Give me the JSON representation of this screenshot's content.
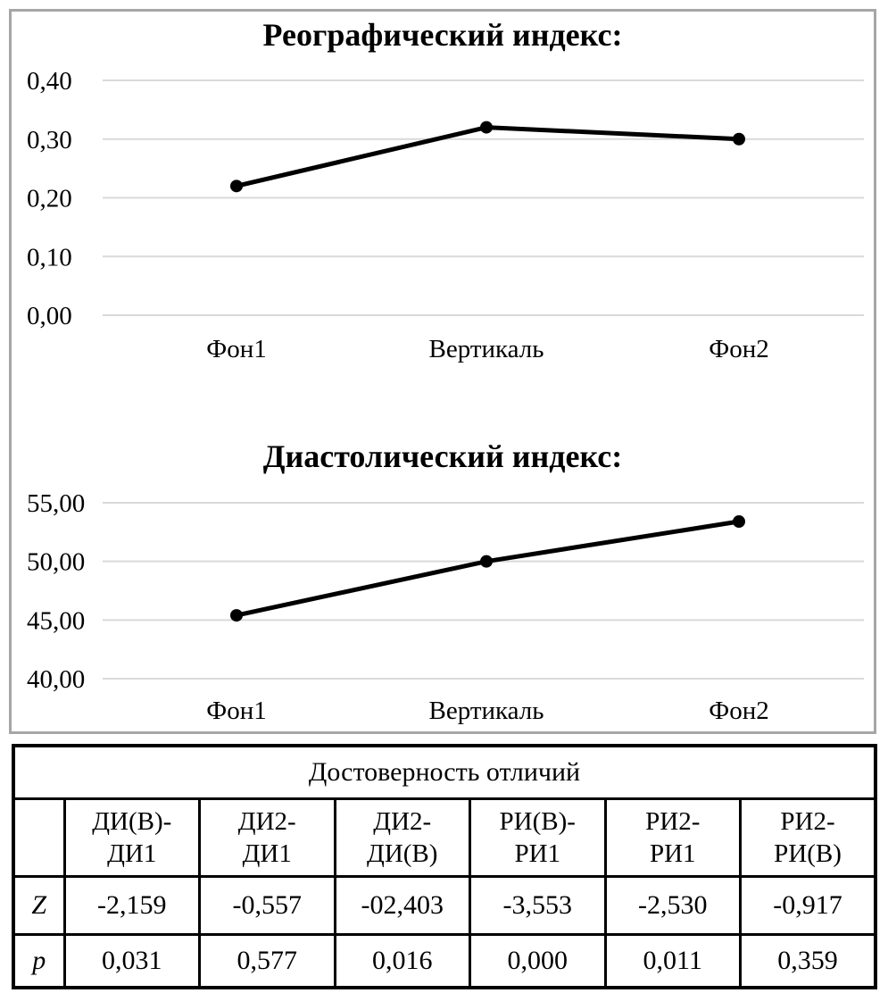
{
  "panel": {
    "border_color": "#a6a6a6"
  },
  "chart_data": [
    {
      "type": "line",
      "title": "Реографический индекс:",
      "categories": [
        "Фон1",
        "Вертикаль",
        "Фон2"
      ],
      "values": [
        0.22,
        0.32,
        0.3
      ],
      "ylim": [
        0,
        0.4
      ],
      "y_ticks": [
        {
          "label": "0,40",
          "value": 0.4
        },
        {
          "label": "0,30",
          "value": 0.3
        },
        {
          "label": "0,20",
          "value": 0.2
        },
        {
          "label": "0,10",
          "value": 0.1
        },
        {
          "label": "0,00",
          "value": 0.0
        }
      ],
      "grid": true,
      "legend": "none",
      "xlabel": "",
      "ylabel": "",
      "line_color": "#000000",
      "gridline_color": "#d9d9d9"
    },
    {
      "type": "line",
      "title": "Диастолический индекс:",
      "categories": [
        "Фон1",
        "Вертикаль",
        "Фон2"
      ],
      "values": [
        45.4,
        50.0,
        53.4
      ],
      "ylim": [
        40,
        55
      ],
      "y_ticks": [
        {
          "label": "55,00",
          "value": 55
        },
        {
          "label": "50,00",
          "value": 50
        },
        {
          "label": "45,00",
          "value": 45
        },
        {
          "label": "40,00",
          "value": 40
        }
      ],
      "grid": true,
      "legend": "none",
      "xlabel": "",
      "ylabel": "",
      "line_color": "#000000",
      "gridline_color": "#d9d9d9"
    }
  ],
  "table": {
    "title": "Достоверность отличий",
    "row_labels": [
      "Z",
      "p"
    ],
    "columns": [
      "ДИ(В)-\nДИ1",
      "ДИ2-\nДИ1",
      "ДИ2-\nДИ(В)",
      "РИ(В)-\nРИ1",
      "РИ2-\nРИ1",
      "РИ2-\nРИ(В)"
    ],
    "z_values": [
      "-2,159",
      "-0,557",
      "-02,403",
      "-3,553",
      "-2,530",
      "-0,917"
    ],
    "p_values": [
      "0,031",
      "0,577",
      "0,016",
      "0,000",
      "0,011",
      "0,359"
    ]
  }
}
